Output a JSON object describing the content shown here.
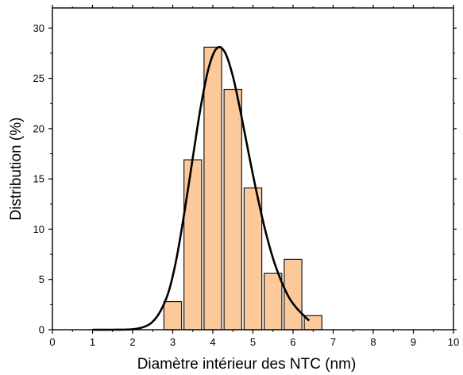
{
  "chart_data": {
    "type": "bar",
    "xlabel": "Diamètre intérieur des NTC (nm)",
    "ylabel": "Distribution (%)",
    "xlim": [
      0,
      10
    ],
    "ylim": [
      0,
      32
    ],
    "xticks": [
      "0",
      "1",
      "2",
      "3",
      "4",
      "5",
      "6",
      "7",
      "8",
      "9",
      "10"
    ],
    "yticks": [
      "0",
      "5",
      "10",
      "15",
      "20",
      "25",
      "30"
    ],
    "grid": false,
    "bar_width": 0.44,
    "bars": [
      {
        "x": 3.0,
        "value": 2.8
      },
      {
        "x": 3.5,
        "value": 16.9
      },
      {
        "x": 4.0,
        "value": 28.1
      },
      {
        "x": 4.5,
        "value": 23.9
      },
      {
        "x": 5.0,
        "value": 14.1
      },
      {
        "x": 5.5,
        "value": 5.6
      },
      {
        "x": 6.0,
        "value": 7.0
      },
      {
        "x": 6.5,
        "value": 1.4
      }
    ],
    "fit_curve": {
      "type": "lognormal",
      "x": [
        1.0,
        1.5,
        2.0,
        2.3,
        2.5,
        2.7,
        2.9,
        3.1,
        3.3,
        3.5,
        3.7,
        3.9,
        4.1,
        4.3,
        4.5,
        4.7,
        4.9,
        5.1,
        5.3,
        5.5,
        5.7,
        5.9,
        6.1,
        6.4
      ],
      "y": [
        0.0,
        0.0,
        0.05,
        0.3,
        0.8,
        1.9,
        3.8,
        7.2,
        11.9,
        17.1,
        22.2,
        26.1,
        28.0,
        27.6,
        25.2,
        21.5,
        17.4,
        13.5,
        10.0,
        7.1,
        4.9,
        3.2,
        2.1,
        0.9
      ]
    },
    "colors": {
      "bar_fill": "#fcc99b",
      "bar_stroke": "#1a1a1a",
      "curve": "#000000",
      "axis": "#000000"
    }
  }
}
